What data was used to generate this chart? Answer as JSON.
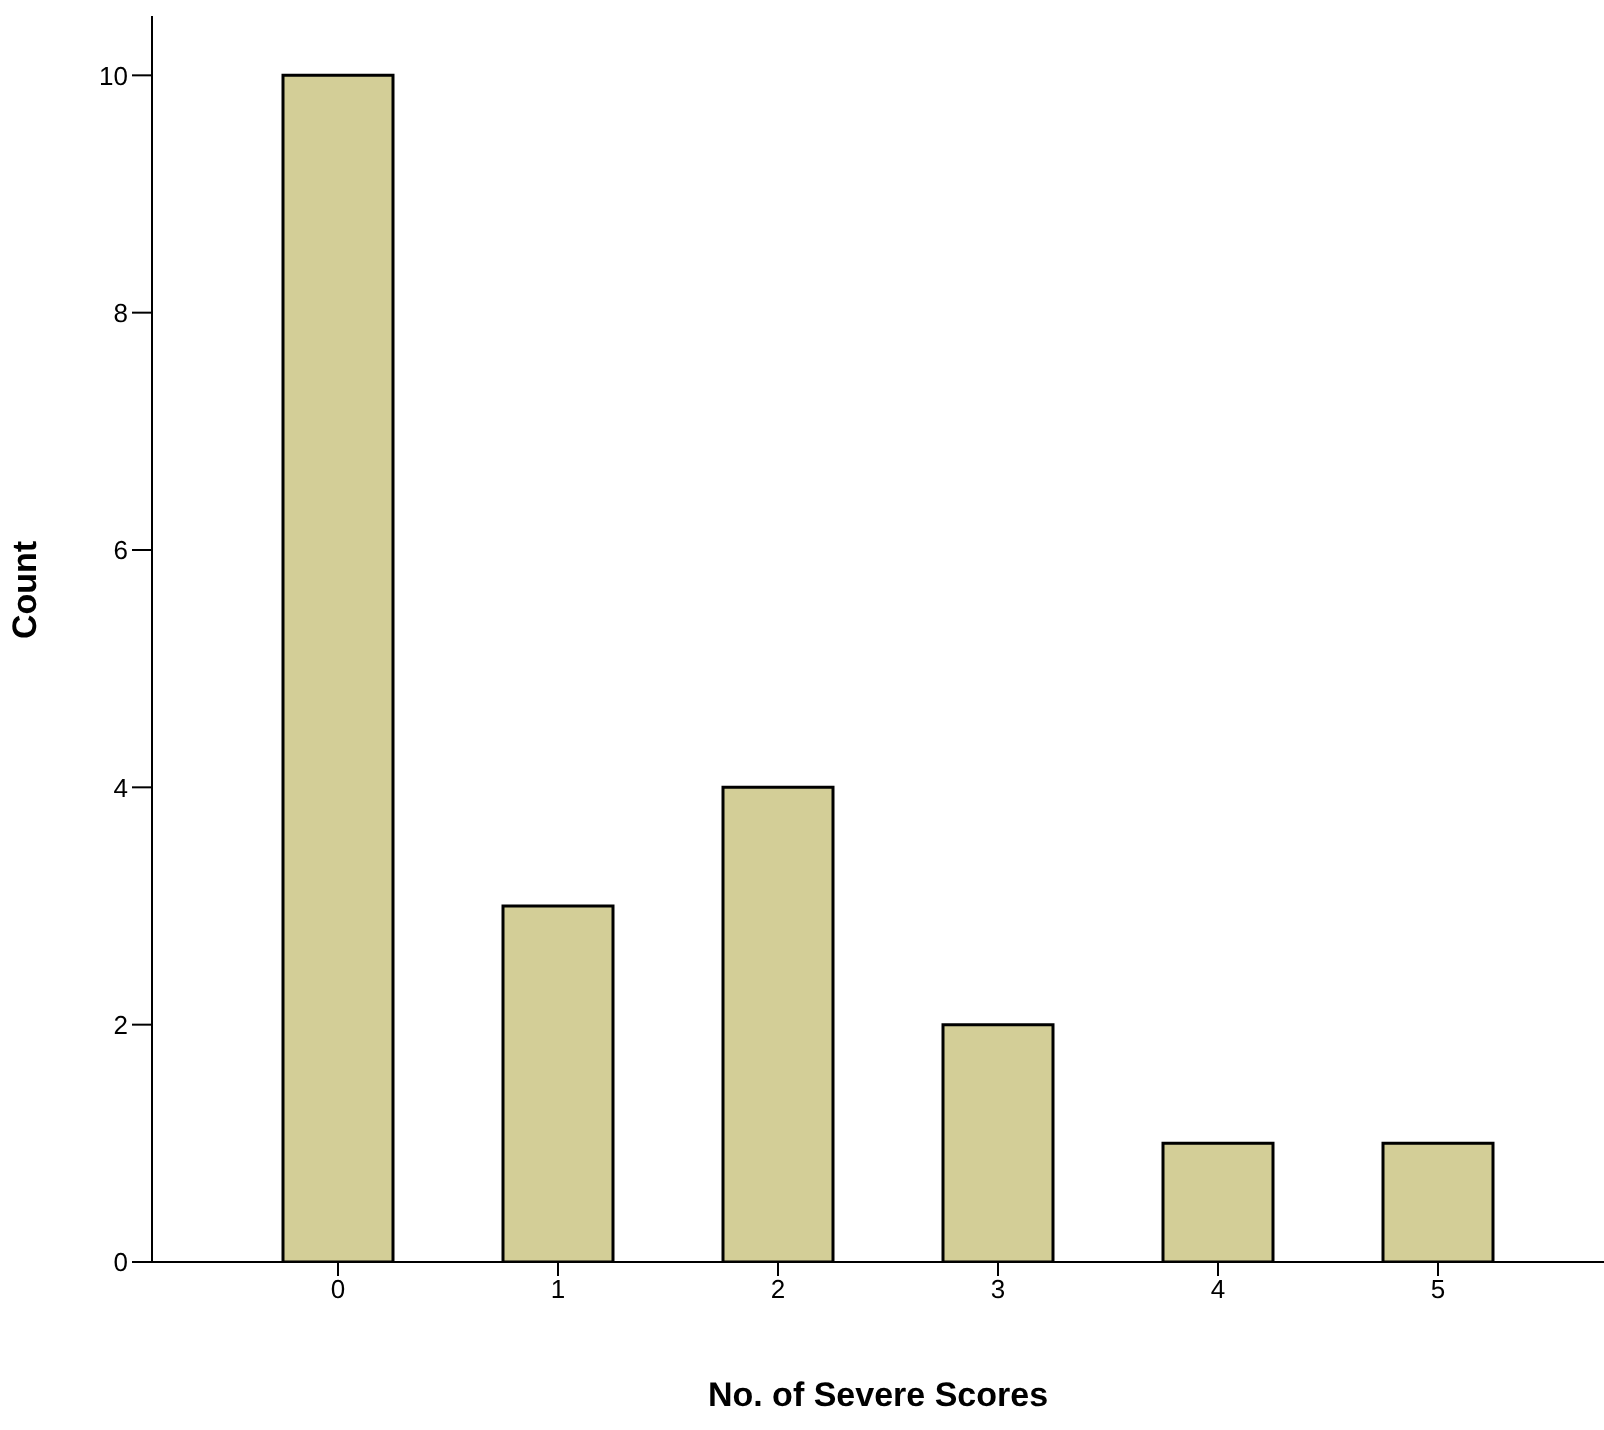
{
  "chart_data": {
    "type": "bar",
    "xlabel": "No. of Severe Scores",
    "ylabel": "Count",
    "categories": [
      "0",
      "1",
      "2",
      "3",
      "4",
      "5"
    ],
    "values": [
      10,
      3,
      4,
      2,
      1,
      1
    ],
    "color": "#d3ce97",
    "ylim": [
      0,
      10.5
    ],
    "yticks": [
      0,
      2,
      4,
      6,
      8,
      10
    ],
    "grid": false,
    "legend": false
  }
}
